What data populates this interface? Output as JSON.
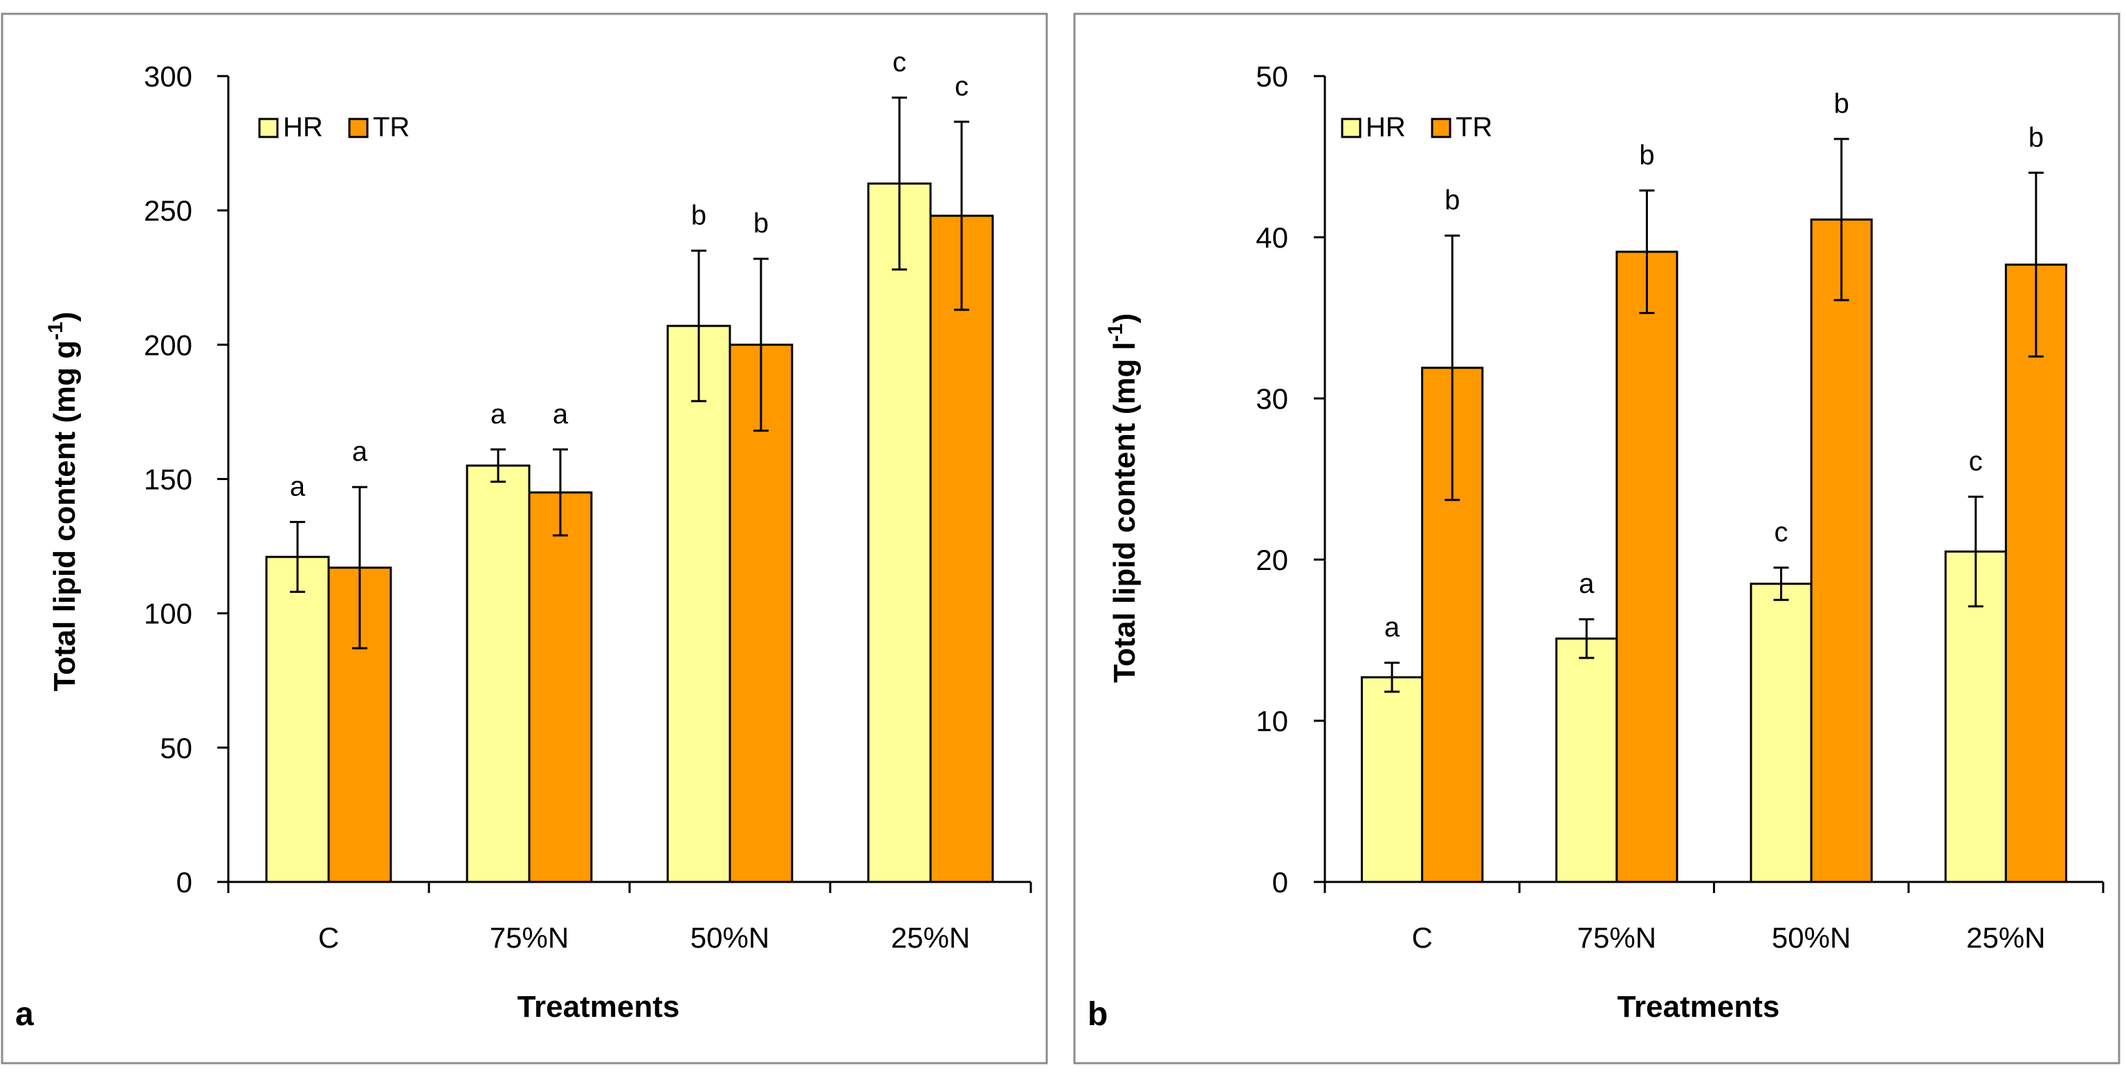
{
  "chart_data": [
    {
      "type": "bar",
      "panel": "a",
      "xlabel": "Treatments",
      "ylabel": "Total lipid content (mg g",
      "ylabel_sup": "-1",
      "ylabel_end": ")",
      "ylim": [
        0,
        300
      ],
      "yticks": [
        0,
        50,
        100,
        150,
        200,
        250,
        300
      ],
      "categories": [
        "C",
        "75%N",
        "50%N",
        "25%N"
      ],
      "legend": [
        "HR",
        "TR"
      ],
      "series": [
        {
          "name": "HR",
          "color": "#ffff99",
          "values": [
            121,
            155,
            207,
            260
          ],
          "errors": [
            13,
            6,
            28,
            32
          ],
          "labels": [
            "a",
            "a",
            "b",
            "c"
          ]
        },
        {
          "name": "TR",
          "color": "#ff9900",
          "values": [
            117,
            145,
            200,
            248
          ],
          "errors": [
            30,
            16,
            32,
            35
          ],
          "labels": [
            "a",
            "a",
            "b",
            "c"
          ]
        }
      ]
    },
    {
      "type": "bar",
      "panel": "b",
      "xlabel": "Treatments",
      "ylabel": "Total lipid content (mg l",
      "ylabel_sup": "-1",
      "ylabel_end": ")",
      "ylim": [
        0,
        50
      ],
      "yticks": [
        0,
        10,
        20,
        30,
        40,
        50
      ],
      "categories": [
        "C",
        "75%N",
        "50%N",
        "25%N"
      ],
      "legend": [
        "HR",
        "TR"
      ],
      "series": [
        {
          "name": "HR",
          "color": "#ffff99",
          "values": [
            12.7,
            15.1,
            18.5,
            20.5
          ],
          "errors": [
            0.9,
            1.2,
            1.0,
            3.4
          ],
          "labels": [
            "a",
            "a",
            "c",
            "c"
          ]
        },
        {
          "name": "TR",
          "color": "#ff9900",
          "values": [
            31.9,
            39.1,
            41.1,
            38.3
          ],
          "errors": [
            8.2,
            3.8,
            5.0,
            5.7
          ],
          "labels": [
            "b",
            "b",
            "b",
            "b"
          ]
        }
      ]
    }
  ]
}
